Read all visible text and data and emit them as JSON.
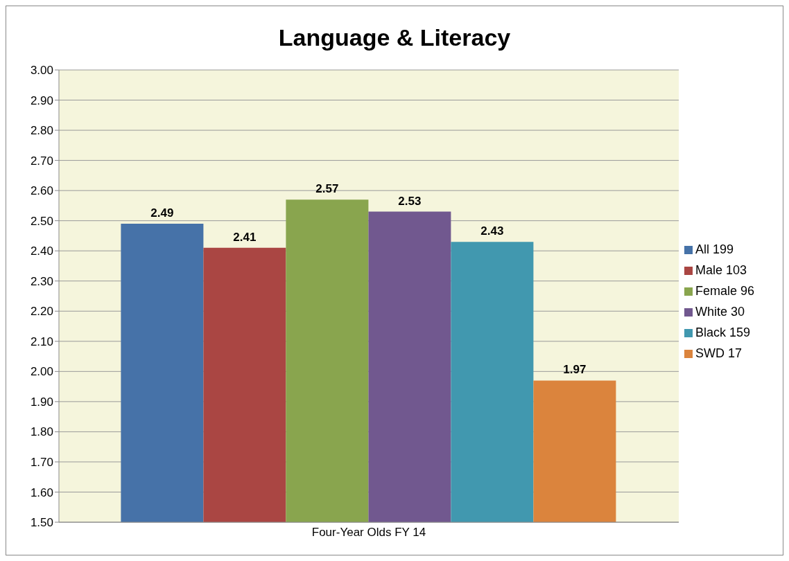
{
  "chart_data": {
    "type": "bar",
    "title": "Language & Literacy",
    "categories": [
      "Four-Year Olds FY 14"
    ],
    "series": [
      {
        "name": "All 199",
        "color": "#4672a8",
        "values": [
          2.49
        ]
      },
      {
        "name": "Male 103",
        "color": "#aa4643",
        "values": [
          2.41
        ]
      },
      {
        "name": "Female 96",
        "color": "#89a54e",
        "values": [
          2.57
        ]
      },
      {
        "name": "White 30",
        "color": "#71588f",
        "values": [
          2.53
        ]
      },
      {
        "name": "Black 159",
        "color": "#4198af",
        "values": [
          2.43
        ]
      },
      {
        "name": "SWD 17",
        "color": "#db843d",
        "values": [
          1.97
        ]
      }
    ],
    "ylim": [
      1.5,
      3
    ],
    "yticks": [
      {
        "value": 1.5,
        "label": "1.50"
      },
      {
        "value": 1.6,
        "label": "1.60"
      },
      {
        "value": 1.7,
        "label": "1.70"
      },
      {
        "value": 1.8,
        "label": "1.80"
      },
      {
        "value": 1.9,
        "label": "1.90"
      },
      {
        "value": 2.0,
        "label": "2.00"
      },
      {
        "value": 2.1,
        "label": "2.10"
      },
      {
        "value": 2.2,
        "label": "2.20"
      },
      {
        "value": 2.3,
        "label": "2.30"
      },
      {
        "value": 2.4,
        "label": "2.40"
      },
      {
        "value": 2.5,
        "label": "2.50"
      },
      {
        "value": 2.6,
        "label": "2.60"
      },
      {
        "value": 2.7,
        "label": "2.70"
      },
      {
        "value": 2.8,
        "label": "2.80"
      },
      {
        "value": 2.9,
        "label": "2.90"
      },
      {
        "value": 3.0,
        "label": "3.00"
      }
    ],
    "grid": "y",
    "legend": "right",
    "data_labels": true
  }
}
